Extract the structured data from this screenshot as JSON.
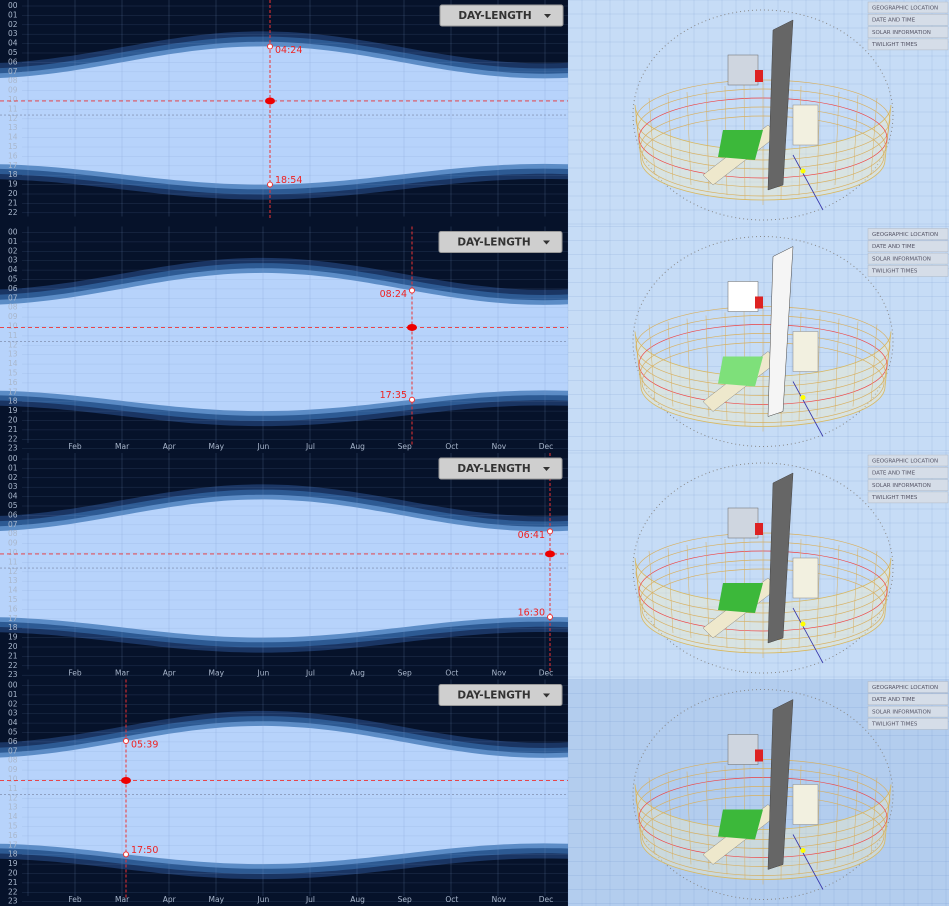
{
  "panels": [
    {
      "button": "DAY-LENGTH",
      "hours": [
        "00",
        "01",
        "02",
        "03",
        "04",
        "05",
        "06",
        "07",
        "08",
        "09",
        "10",
        "11",
        "12",
        "13",
        "14",
        "15",
        "16",
        "17",
        "18",
        "19",
        "20",
        "21",
        "22"
      ],
      "sunrise": "04:24",
      "sunset": "18:54",
      "menu": [
        "GEOGRAPHIC LOCATION",
        "DATE AND TIME",
        "SOLAR INFORMATION",
        "TWILIGHT TIMES"
      ]
    },
    {
      "button": "DAY-LENGTH",
      "hours": [
        "00",
        "01",
        "02",
        "03",
        "04",
        "05",
        "06",
        "07",
        "08",
        "09",
        "10",
        "11",
        "12",
        "13",
        "14",
        "15",
        "16",
        "17",
        "18",
        "19",
        "20",
        "21",
        "22",
        "23"
      ],
      "months": [
        "Feb",
        "Mar",
        "Apr",
        "May",
        "Jun",
        "Jul",
        "Aug",
        "Sep",
        "Oct",
        "Nov",
        "Dec"
      ],
      "sunrise": "08:24",
      "sunset": "17:35",
      "menu": [
        "GEOGRAPHIC LOCATION",
        "DATE AND TIME",
        "SOLAR INFORMATION",
        "TWILIGHT TIMES"
      ]
    },
    {
      "button": "DAY-LENGTH",
      "hours": [
        "00",
        "01",
        "02",
        "03",
        "04",
        "05",
        "06",
        "07",
        "08",
        "09",
        "10",
        "11",
        "12",
        "13",
        "14",
        "15",
        "16",
        "17",
        "18",
        "19",
        "20",
        "21",
        "22",
        "23"
      ],
      "months": [
        "Feb",
        "Mar",
        "Apr",
        "May",
        "Jun",
        "Jul",
        "Aug",
        "Sep",
        "Oct",
        "Nov",
        "Dec"
      ],
      "sunrise": "06:41",
      "sunset": "16:30",
      "menu": [
        "GEOGRAPHIC LOCATION",
        "DATE AND TIME",
        "SOLAR INFORMATION",
        "TWILIGHT TIMES"
      ]
    },
    {
      "button": "DAY-LENGTH",
      "hours": [
        "00",
        "01",
        "02",
        "03",
        "04",
        "05",
        "06",
        "07",
        "08",
        "09",
        "10",
        "11",
        "12",
        "13",
        "14",
        "15",
        "16",
        "17",
        "18",
        "19",
        "20",
        "21",
        "22",
        "23"
      ],
      "months": [
        "Feb",
        "Mar",
        "Apr",
        "May",
        "Jun",
        "Jul",
        "Aug",
        "Sep",
        "Oct",
        "Nov",
        "Dec"
      ],
      "sunrise": "05:39",
      "sunset": "17:50",
      "menu": [
        "GEOGRAPHIC LOCATION",
        "DATE AND TIME",
        "SOLAR INFORMATION",
        "TWILIGHT TIMES"
      ]
    }
  ]
}
